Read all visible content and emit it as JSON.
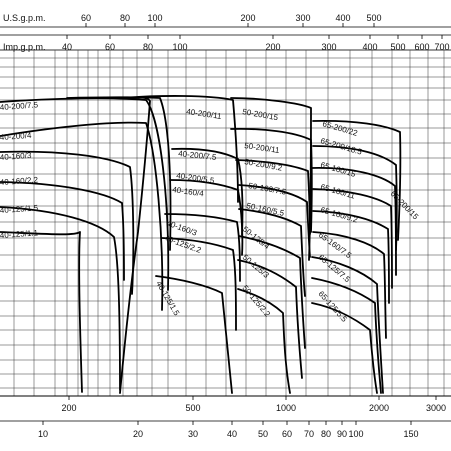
{
  "chart_data": {
    "type": "line",
    "title": "",
    "log_scale": true,
    "grid": true,
    "x_axes": {
      "us_gpm_label": "U.S.g.p.m.",
      "us_gpm_ticks": [
        "60",
        "80",
        "100",
        "200",
        "300",
        "400",
        "500"
      ],
      "imp_gpm_label": "Imp.g.p.m.",
      "imp_gpm_ticks": [
        "40",
        "60",
        "80",
        "100",
        "200",
        "300",
        "400",
        "500",
        "600",
        "700"
      ],
      "bottom_axis_1_ticks": [
        "200",
        "500",
        "1000",
        "2000",
        "3000"
      ],
      "bottom_axis_2_ticks": [
        "10",
        "20",
        "30",
        "40",
        "50",
        "60",
        "70",
        "80",
        "90",
        "100",
        "150"
      ]
    },
    "series": [
      {
        "name": "40-200/7.5",
        "values": [
          1
        ]
      },
      {
        "name": "40-200/4",
        "values": [
          1
        ]
      },
      {
        "name": "40-160/3",
        "values": [
          1
        ]
      },
      {
        "name": "40-160/2.2",
        "values": [
          1
        ]
      },
      {
        "name": "40-125/1.5",
        "values": [
          1
        ]
      },
      {
        "name": "40-125/1.1",
        "values": [
          1
        ]
      },
      {
        "name": "40-200/11",
        "values": [
          1
        ]
      },
      {
        "name": "40-200/7.5",
        "values": [
          1
        ]
      },
      {
        "name": "40-200/5.5",
        "values": [
          1
        ]
      },
      {
        "name": "40-160/4",
        "values": [
          1
        ]
      },
      {
        "name": "40-160/3",
        "values": [
          1
        ]
      },
      {
        "name": "40-125/2.2",
        "values": [
          1
        ]
      },
      {
        "name": "40-125/1.5",
        "values": [
          1
        ]
      },
      {
        "name": "50-200/15",
        "values": [
          1
        ]
      },
      {
        "name": "50-200/11",
        "values": [
          1
        ]
      },
      {
        "name": "50-200/9.2",
        "values": [
          1
        ]
      },
      {
        "name": "50-160/7.5",
        "values": [
          1
        ]
      },
      {
        "name": "50-160/5.5",
        "values": [
          1
        ]
      },
      {
        "name": "50-125/4",
        "values": [
          1
        ]
      },
      {
        "name": "50-125/3",
        "values": [
          1
        ]
      },
      {
        "name": "50-125/2.2",
        "values": [
          1
        ]
      },
      {
        "name": "65-200/22",
        "values": [
          1
        ]
      },
      {
        "name": "65-200/18.5",
        "values": [
          1
        ]
      },
      {
        "name": "65-200/15",
        "values": [
          1
        ]
      },
      {
        "name": "65-160/15",
        "values": [
          1
        ]
      },
      {
        "name": "65-160/11",
        "values": [
          1
        ]
      },
      {
        "name": "65-160/9.2",
        "values": [
          1
        ]
      },
      {
        "name": "65-160/7.5",
        "values": [
          1
        ]
      },
      {
        "name": "65-125/7.5",
        "values": [
          1
        ]
      },
      {
        "name": "65-125/5.5",
        "values": [
          1
        ]
      },
      {
        "name": "65-125/4",
        "values": [
          1
        ]
      }
    ]
  }
}
